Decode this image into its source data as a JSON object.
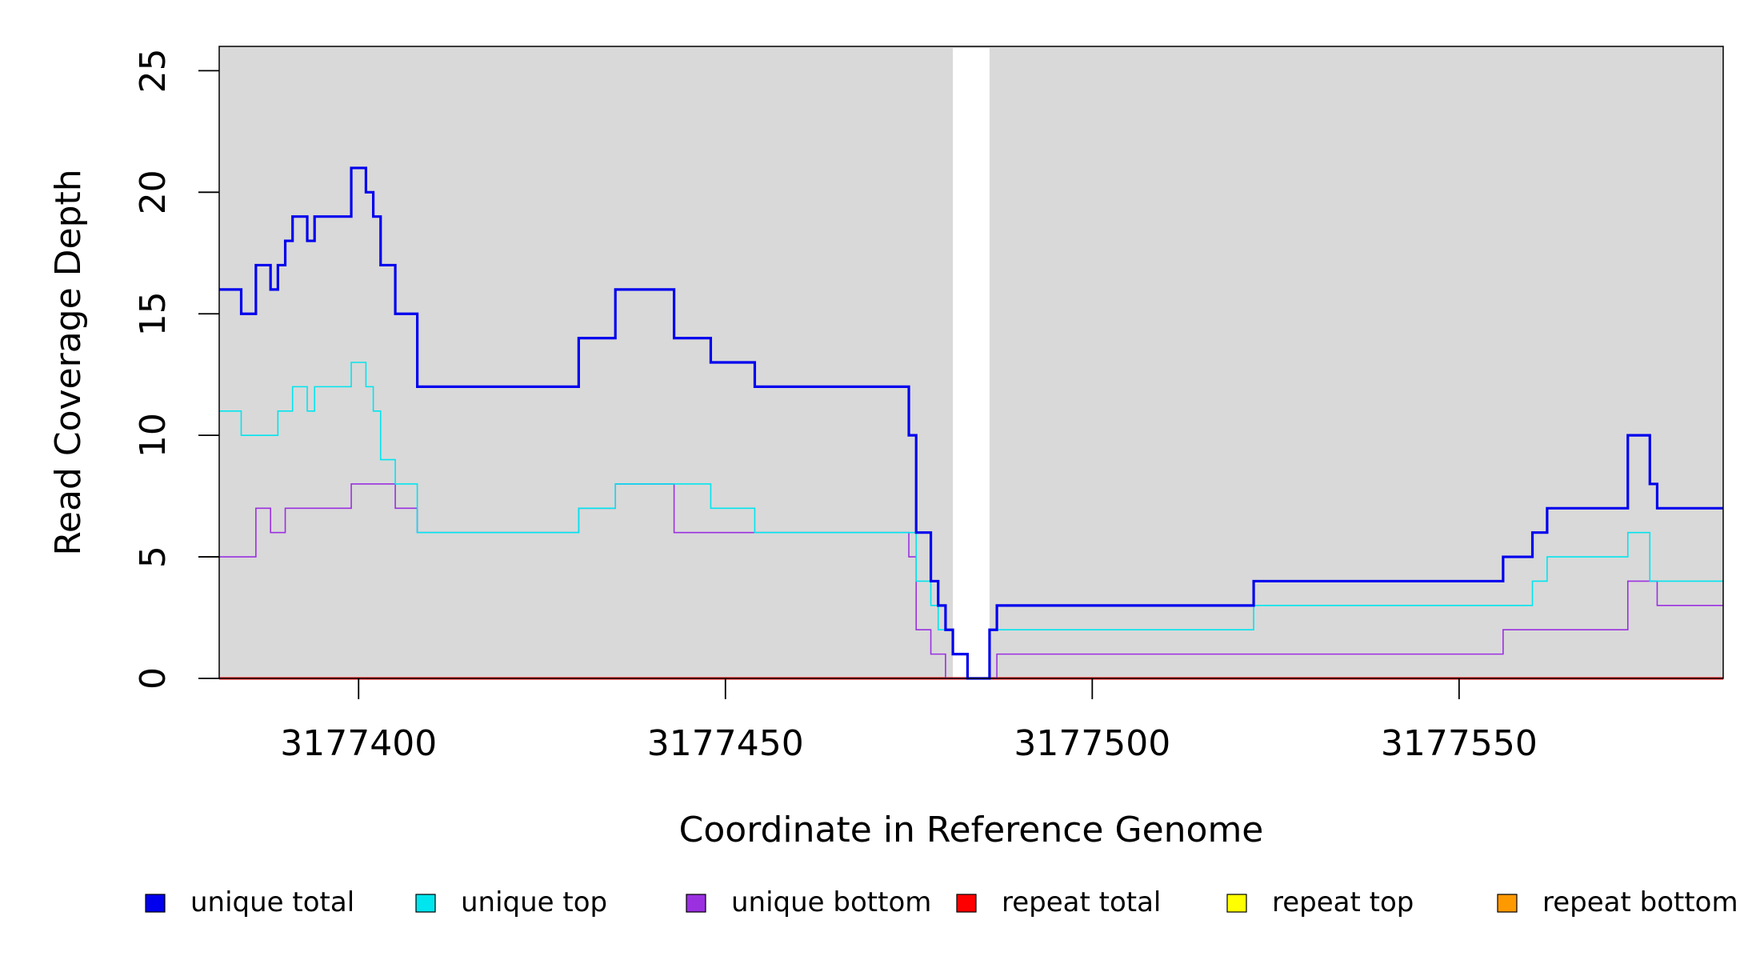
{
  "chart_data": {
    "type": "line",
    "title": "",
    "xlabel": "Coordinate in Reference Genome",
    "ylabel": "Read Coverage Depth",
    "xlim": [
      3177381,
      3177586
    ],
    "ylim": [
      0,
      26
    ],
    "x_ticks": [
      3177400,
      3177450,
      3177500,
      3177550
    ],
    "x_tick_labels": [
      "3177400",
      "3177450",
      "3177500",
      "3177550"
    ],
    "y_ticks": [
      0,
      5,
      10,
      15,
      20,
      25
    ],
    "y_tick_labels": [
      "0",
      "5",
      "10",
      "15",
      "20",
      "25"
    ],
    "background_color": "#d9d9d9",
    "gap_region": [
      3177481,
      3177486
    ],
    "gap_color": "#ffffff",
    "legend_position": "bottom",
    "series": [
      {
        "name": "unique total",
        "color": "#0000ee",
        "steps": [
          [
            3177381,
            16
          ],
          [
            3177384,
            15
          ],
          [
            3177386,
            17
          ],
          [
            3177388,
            16
          ],
          [
            3177389,
            17
          ],
          [
            3177390,
            18
          ],
          [
            3177391,
            19
          ],
          [
            3177393,
            18
          ],
          [
            3177394,
            19
          ],
          [
            3177399,
            21
          ],
          [
            3177400,
            21
          ],
          [
            3177401,
            20
          ],
          [
            3177402,
            19
          ],
          [
            3177403,
            17
          ],
          [
            3177405,
            15
          ],
          [
            3177408,
            12
          ],
          [
            3177430,
            14
          ],
          [
            3177435,
            16
          ],
          [
            3177443,
            14
          ],
          [
            3177448,
            13
          ],
          [
            3177454,
            12
          ],
          [
            3177475,
            10
          ],
          [
            3177476,
            6
          ],
          [
            3177478,
            4
          ],
          [
            3177479,
            3
          ],
          [
            3177480,
            2
          ],
          [
            3177481,
            1
          ],
          [
            3177483,
            0
          ],
          [
            3177486,
            2
          ],
          [
            3177487,
            3
          ],
          [
            3177522,
            4
          ],
          [
            3177556,
            5
          ],
          [
            3177560,
            6
          ],
          [
            3177562,
            7
          ],
          [
            3177573,
            10
          ],
          [
            3177576,
            8
          ],
          [
            3177577,
            7
          ],
          [
            3177586,
            7
          ]
        ]
      },
      {
        "name": "unique top",
        "color": "#00e5ee",
        "steps": [
          [
            3177381,
            11
          ],
          [
            3177384,
            10
          ],
          [
            3177389,
            11
          ],
          [
            3177391,
            12
          ],
          [
            3177393,
            11
          ],
          [
            3177394,
            12
          ],
          [
            3177399,
            13
          ],
          [
            3177401,
            12
          ],
          [
            3177402,
            11
          ],
          [
            3177403,
            9
          ],
          [
            3177405,
            8
          ],
          [
            3177408,
            6
          ],
          [
            3177430,
            7
          ],
          [
            3177435,
            8
          ],
          [
            3177448,
            7
          ],
          [
            3177454,
            6
          ],
          [
            3177476,
            4
          ],
          [
            3177478,
            3
          ],
          [
            3177479,
            2
          ],
          [
            3177480,
            2
          ],
          [
            3177481,
            1
          ],
          [
            3177483,
            0
          ],
          [
            3177486,
            2
          ],
          [
            3177522,
            3
          ],
          [
            3177560,
            4
          ],
          [
            3177562,
            5
          ],
          [
            3177573,
            6
          ],
          [
            3177576,
            4
          ],
          [
            3177586,
            4
          ]
        ]
      },
      {
        "name": "unique bottom",
        "color": "#9b30e0",
        "steps": [
          [
            3177381,
            5
          ],
          [
            3177386,
            7
          ],
          [
            3177388,
            6
          ],
          [
            3177390,
            7
          ],
          [
            3177399,
            8
          ],
          [
            3177405,
            7
          ],
          [
            3177408,
            6
          ],
          [
            3177430,
            7
          ],
          [
            3177435,
            8
          ],
          [
            3177443,
            6
          ],
          [
            3177475,
            5
          ],
          [
            3177476,
            2
          ],
          [
            3177478,
            1
          ],
          [
            3177480,
            0
          ],
          [
            3177487,
            1
          ],
          [
            3177556,
            2
          ],
          [
            3177573,
            4
          ],
          [
            3177577,
            3
          ],
          [
            3177586,
            3
          ]
        ]
      },
      {
        "name": "repeat total",
        "color": "#ff0000",
        "steps": [
          [
            3177381,
            0
          ],
          [
            3177586,
            0
          ]
        ]
      },
      {
        "name": "repeat top",
        "color": "#ffff00",
        "steps": [
          [
            3177381,
            0
          ],
          [
            3177586,
            0
          ]
        ]
      },
      {
        "name": "repeat bottom",
        "color": "#ff9900",
        "steps": [
          [
            3177381,
            0
          ],
          [
            3177586,
            0
          ]
        ]
      }
    ]
  },
  "legend": {
    "items": [
      {
        "label": "unique total",
        "color": "#0000ee"
      },
      {
        "label": "unique top",
        "color": "#00e5ee"
      },
      {
        "label": "unique bottom",
        "color": "#9b30e0"
      },
      {
        "label": "repeat total",
        "color": "#ff0000"
      },
      {
        "label": "repeat top",
        "color": "#ffff00"
      },
      {
        "label": "repeat bottom",
        "color": "#ff9900"
      }
    ]
  }
}
